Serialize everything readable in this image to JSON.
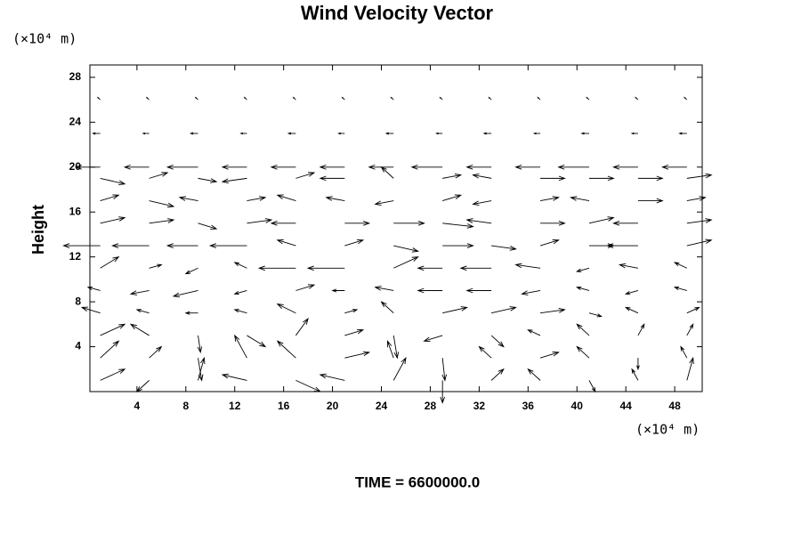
{
  "chart_data": {
    "type": "quiver",
    "title": "Wind Velocity Vector",
    "y_unit": "(×10⁴ m)",
    "x_unit": "(×10⁴ m)",
    "ylabel": "Height",
    "footer": "TIME = 6600000.0",
    "color": "#000000",
    "grid": false,
    "xlim": [
      0.15,
      50.25
    ],
    "ylim": [
      0,
      29.1
    ],
    "xticks": [
      4,
      8,
      12,
      16,
      20,
      24,
      28,
      32,
      36,
      40,
      44,
      48
    ],
    "yticks": [
      4,
      8,
      12,
      16,
      20,
      24,
      28
    ],
    "x": [
      1,
      5,
      9,
      13,
      17,
      21,
      25,
      29,
      33,
      37,
      41,
      45,
      49
    ],
    "rows": [
      {
        "y": 1,
        "u": [
          2,
          -1,
          0.5,
          -2,
          2,
          -2,
          1,
          0,
          1,
          -1,
          0.5,
          -0.5,
          0.5
        ],
        "v": [
          1,
          -1,
          2,
          0.5,
          -1,
          0.5,
          2,
          -2,
          1,
          1,
          -1,
          1,
          2
        ]
      },
      {
        "y": 3,
        "u": [
          1.5,
          1,
          0.3,
          -1,
          -1.5,
          2,
          -0.5,
          0.2,
          -1,
          1.5,
          -1,
          0,
          -0.5
        ],
        "v": [
          1.5,
          1,
          -2,
          2,
          1.5,
          0.5,
          1.5,
          -2,
          1,
          0.5,
          1,
          -1,
          1
        ]
      },
      {
        "y": 5,
        "u": [
          2,
          -1.5,
          0.2,
          1.5,
          1,
          1.5,
          0.3,
          -1.5,
          1,
          -1,
          -1,
          0.5,
          0.5
        ],
        "v": [
          1,
          1,
          -1.5,
          -1,
          1.5,
          0.5,
          -2,
          -0.5,
          -1,
          0.5,
          1,
          1,
          1
        ]
      },
      {
        "y": 7,
        "u": [
          -1.5,
          -1,
          -1,
          -1,
          -1.5,
          1,
          -1,
          2,
          2,
          2,
          1,
          -1,
          1
        ],
        "v": [
          0.5,
          0.3,
          0,
          0.3,
          0.8,
          0.3,
          1,
          0.5,
          0.5,
          0.3,
          -0.3,
          0.5,
          0.5
        ]
      },
      {
        "y": 9,
        "u": [
          -1,
          -1.5,
          -2,
          -1,
          1.5,
          -1,
          -1.5,
          -2,
          -2,
          -1.5,
          -1,
          -1,
          -1
        ],
        "v": [
          0.3,
          -0.3,
          -0.5,
          -0.3,
          0.5,
          0,
          0.3,
          0,
          0,
          -0.3,
          0.3,
          -0.3,
          0.3
        ]
      },
      {
        "y": 11,
        "u": [
          1.5,
          1,
          -1,
          -1,
          -3,
          -3,
          2,
          -2,
          -2.5,
          -2,
          -1,
          -1.5,
          -1
        ],
        "v": [
          1,
          0.3,
          -0.5,
          0.5,
          0,
          0,
          1,
          0,
          0,
          0.3,
          -0.3,
          0.3,
          0.5
        ]
      },
      {
        "y": 13,
        "u": [
          -3,
          -3,
          -2.5,
          -3,
          -1.5,
          1.5,
          2,
          2.5,
          2,
          1.5,
          2,
          -2.5,
          2
        ],
        "v": [
          0,
          0,
          0,
          0,
          0.5,
          0.5,
          -0.5,
          0,
          -0.3,
          0.5,
          0,
          0,
          0.5
        ]
      },
      {
        "y": 15,
        "u": [
          2,
          2,
          1.5,
          2,
          -2,
          2,
          2.5,
          2.5,
          -2,
          2,
          2,
          -2,
          2
        ],
        "v": [
          0.5,
          0.3,
          -0.5,
          0.3,
          0,
          0,
          0,
          -0.3,
          0.3,
          0,
          0.5,
          0,
          0.3
        ]
      },
      {
        "y": 17,
        "u": [
          1.5,
          2,
          -1.5,
          1.5,
          -1.5,
          -1.5,
          -1.5,
          1.5,
          -1.5,
          1.5,
          -1.5,
          2,
          1.5
        ],
        "v": [
          0.5,
          -0.5,
          0.3,
          0.3,
          0.5,
          0.3,
          -0.3,
          0.5,
          -0.3,
          0.3,
          0.3,
          0,
          0.3
        ]
      },
      {
        "y": 19,
        "u": [
          2,
          1.5,
          1.5,
          -2,
          1.5,
          -2,
          -1,
          1.5,
          -1.5,
          2,
          2,
          2,
          2
        ],
        "v": [
          -0.5,
          0.5,
          -0.3,
          -0.3,
          0.5,
          0,
          1,
          0.3,
          0.3,
          0,
          0,
          0,
          0.3
        ]
      },
      {
        "y": 20,
        "u": [
          -2,
          -2,
          -2.5,
          -2,
          -2,
          -2,
          -2,
          -2.5,
          -2,
          -2,
          -2.5,
          -2,
          -2
        ],
        "v": [
          0,
          0,
          0,
          0,
          0,
          0,
          0,
          0,
          0,
          0,
          0,
          0,
          0
        ]
      },
      {
        "y": 23,
        "u": [
          -0.6,
          -0.5,
          -0.6,
          -0.5,
          -0.6,
          -0.5,
          -0.6,
          -0.5,
          -0.6,
          -0.5,
          -0.6,
          -0.5,
          -0.6
        ],
        "v": [
          0,
          0,
          0,
          0,
          0,
          0,
          0,
          0,
          0,
          0,
          0,
          0,
          0
        ]
      },
      {
        "y": 26,
        "u": [
          -0.2,
          -0.2,
          -0.2,
          -0.2,
          -0.2,
          -0.2,
          -0.2,
          -0.2,
          -0.2,
          -0.2,
          -0.2,
          -0.2,
          -0.2
        ],
        "v": [
          0.2,
          0.2,
          0.2,
          0.2,
          0.2,
          0.2,
          0.2,
          0.2,
          0.2,
          0.2,
          0.2,
          0.2,
          0.2
        ]
      }
    ]
  }
}
